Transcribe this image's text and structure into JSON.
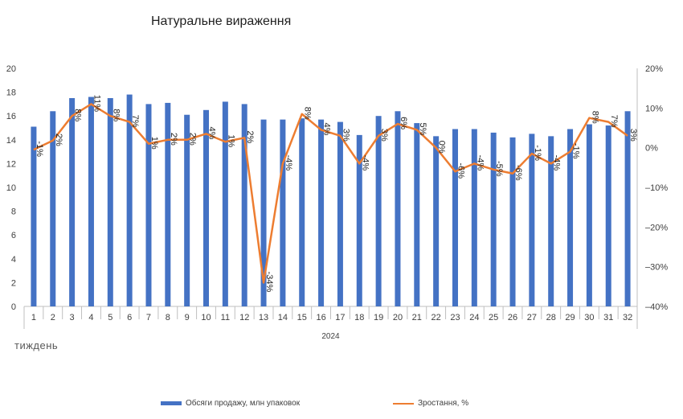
{
  "chart_data": {
    "type": "bar+line",
    "title": "Натуральне вираження",
    "x_unit_label": "тиждень",
    "x_group_label": "2024",
    "categories": [
      "1",
      "2",
      "3",
      "4",
      "5",
      "6",
      "7",
      "8",
      "9",
      "10",
      "11",
      "12",
      "13",
      "14",
      "15",
      "16",
      "17",
      "18",
      "19",
      "20",
      "21",
      "22",
      "23",
      "24",
      "25",
      "26",
      "27",
      "28",
      "29",
      "30",
      "31",
      "32"
    ],
    "left_axis": {
      "ylim": [
        0,
        20
      ],
      "ticks": [
        "0",
        "2",
        "4",
        "6",
        "8",
        "10",
        "12",
        "14",
        "16",
        "18",
        "20"
      ]
    },
    "right_axis": {
      "ylim": [
        -40,
        20
      ],
      "ticks": [
        "-40%",
        "-30%",
        "-20%",
        "-10%",
        "0%",
        "10%",
        "20%"
      ]
    },
    "series": [
      {
        "name": "Обсяги продажу, млн упаковок",
        "type": "bar",
        "axis": "left",
        "color": "#4472C4",
        "values": [
          15.1,
          16.4,
          17.5,
          17.6,
          17.5,
          17.8,
          17.0,
          17.1,
          16.1,
          16.5,
          17.2,
          17.0,
          15.7,
          15.7,
          15.8,
          15.7,
          15.5,
          14.4,
          16.0,
          16.4,
          15.4,
          14.3,
          14.9,
          14.9,
          14.6,
          14.2,
          14.5,
          14.3,
          14.9,
          15.3,
          15.2,
          16.4
        ]
      },
      {
        "name": "Зростання, %",
        "type": "line",
        "axis": "right",
        "color": "#ED7D31",
        "values": [
          -0.5,
          1.8,
          8,
          11,
          8,
          6.5,
          1,
          2,
          2,
          3.5,
          1.5,
          2.5,
          -34,
          -4,
          8.5,
          4.5,
          3,
          -4,
          3,
          6,
          4.5,
          0,
          -6,
          -4,
          -5.5,
          -6.5,
          -1.5,
          -4,
          -1,
          7.5,
          6.5,
          3
        ],
        "labels": [
          "-1%",
          "2%",
          "8%",
          "11%",
          "8%",
          "7%",
          "1%",
          "2%",
          "2%",
          "4%",
          "1%",
          "2%",
          "-34%",
          "-4%",
          "8%",
          "4%",
          "3%",
          "-4%",
          "3%",
          "6%",
          "5%",
          "0%",
          "-6%",
          "-4%",
          "-5%",
          "-6%",
          "-1%",
          "-4%",
          "-1%",
          "8%",
          "7%",
          "3%"
        ]
      }
    ],
    "legend_position": "bottom",
    "grid": false
  }
}
